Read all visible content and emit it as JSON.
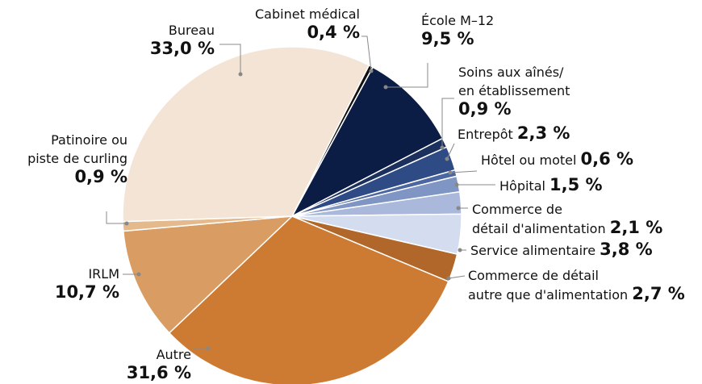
{
  "chart_data": {
    "type": "pie",
    "categories": [
      "Cabinet médical",
      "École M–12",
      "Soins aux aînés/\nen établissement",
      "Entrepôt",
      "Hôtel ou motel",
      "Hôpital",
      "Commerce de\ndétail d'alimentation",
      "Service alimentaire",
      "Commerce de détail\nautre que d'alimentation",
      "Autre",
      "IRLM",
      "Patinoire ou\npiste de curling",
      "Bureau"
    ],
    "values": [
      0.4,
      9.5,
      0.9,
      2.3,
      0.6,
      1.5,
      2.1,
      3.8,
      2.7,
      31.6,
      10.7,
      0.9,
      33.0
    ],
    "value_labels": [
      "0,4 %",
      "9,5 %",
      "0,9 %",
      "2,3 %",
      "0,6 %",
      "1,5 %",
      "2,1 %",
      "3,8 %",
      "2,7 %",
      "31,6 %",
      "10,7 %",
      "0,9 %",
      "33,0 %"
    ],
    "colors": [
      "#111111",
      "#0b1d45",
      "#1b305c",
      "#2f4b86",
      "#4b66a0",
      "#7f95c4",
      "#a9b8db",
      "#d4dcef",
      "#b2672a",
      "#cd7b33",
      "#d99c62",
      "#e4b98b",
      "#f4e4d6"
    ]
  }
}
